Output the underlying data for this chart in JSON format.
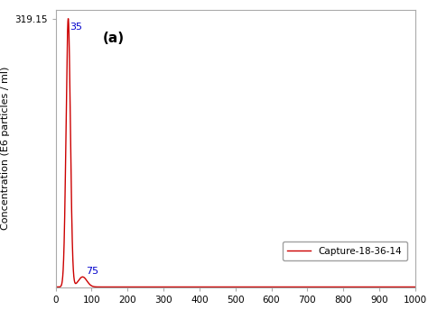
{
  "title_annotation": "(a)",
  "ylabel": "Concentration (E6 particles / ml)",
  "xlabel": "",
  "xlim": [
    0,
    1000
  ],
  "ylim": [
    0,
    330
  ],
  "ytick_max": 319.15,
  "peak1_x": 35,
  "peak1_y": 319.15,
  "peak1_sigma": 6,
  "peak2_x": 75,
  "peak2_y": 12,
  "peak2_sigma": 12,
  "legend_label": "Capture-18-36-14",
  "line_color": "#cc0000",
  "annotation_color": "#0000cc",
  "bg_color": "#ffffff",
  "xticks": [
    0,
    100,
    200,
    300,
    400,
    500,
    600,
    700,
    800,
    900,
    1000
  ]
}
